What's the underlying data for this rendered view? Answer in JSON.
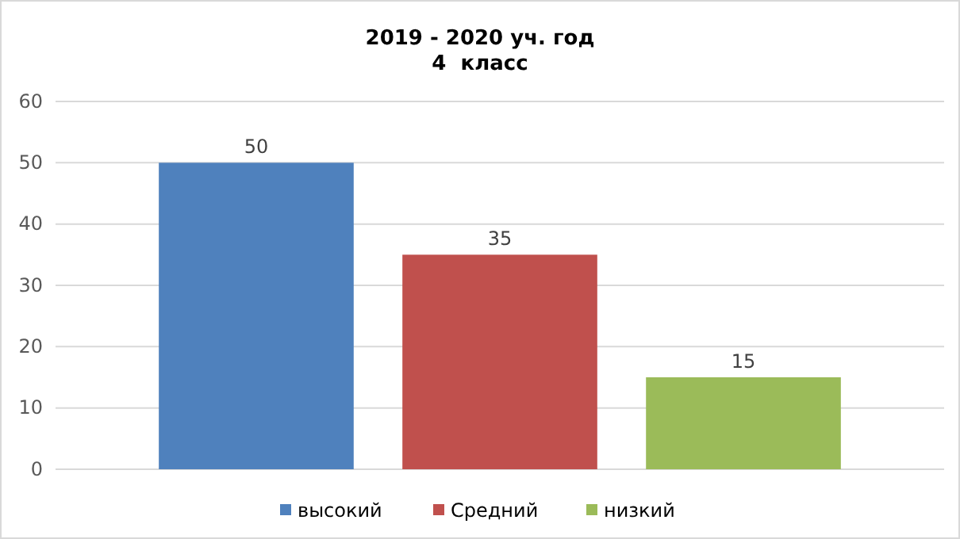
{
  "chart_data": {
    "type": "bar",
    "title": "2019 - 2020 уч. год",
    "subtitle": "4  класс",
    "categories": [
      null
    ],
    "series": [
      {
        "name": "высокий",
        "color": "#4f81bd",
        "values": [
          50
        ]
      },
      {
        "name": "Средний",
        "color": "#c0504d",
        "values": [
          35
        ]
      },
      {
        "name": "низкий",
        "color": "#9bbb59",
        "values": [
          15
        ]
      }
    ],
    "ylim": [
      0,
      60
    ],
    "yticks": [
      0,
      10,
      20,
      30,
      40,
      50,
      60
    ],
    "grid": "y",
    "legend": "bottom",
    "data_labels": true
  }
}
